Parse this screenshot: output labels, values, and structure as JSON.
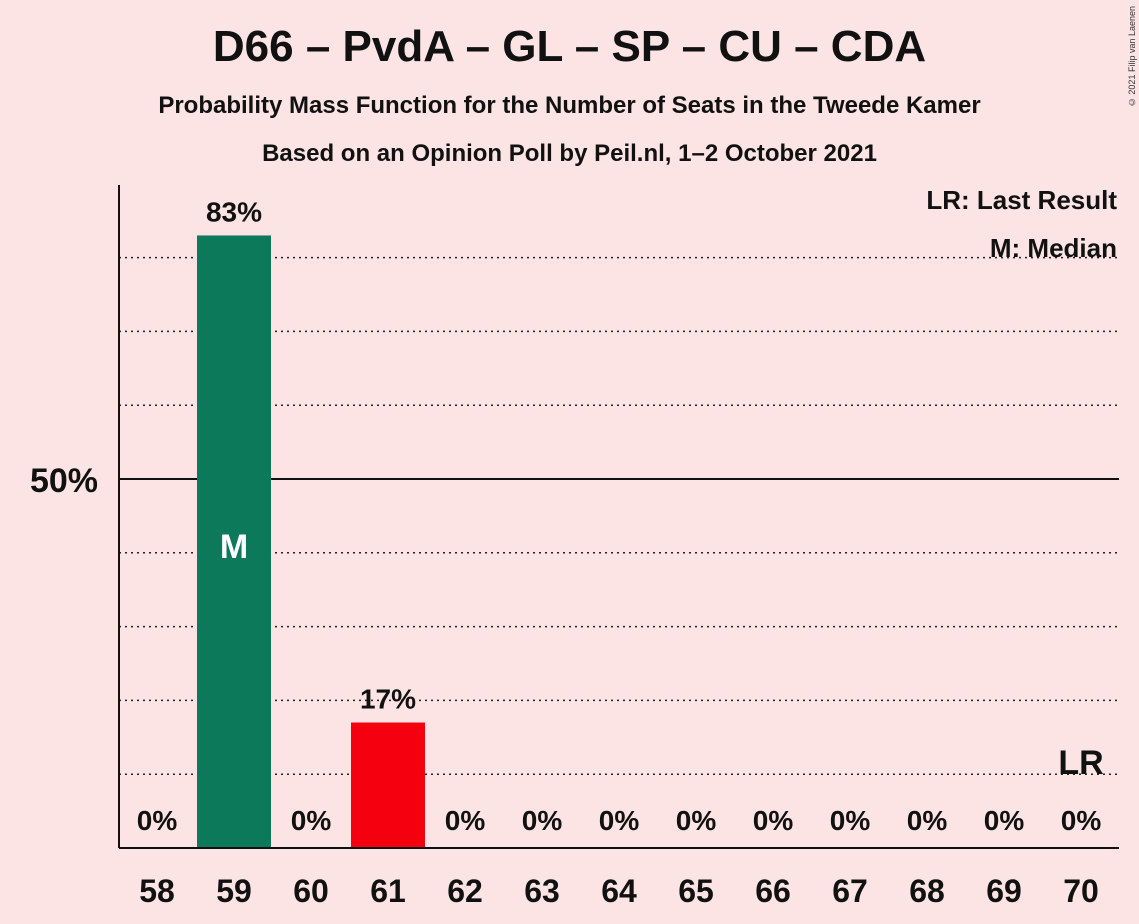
{
  "chart_data": {
    "type": "bar",
    "title": "D66 – PvdA – GL – SP – CU – CDA",
    "subtitle": "Probability Mass Function for the Number of Seats in the Tweede Kamer",
    "subtitle2": "Based on an Opinion Poll by Peil.nl, 1–2 October 2021",
    "categories": [
      "58",
      "59",
      "60",
      "61",
      "62",
      "63",
      "64",
      "65",
      "66",
      "67",
      "68",
      "69",
      "70"
    ],
    "values": [
      0,
      83,
      0,
      17,
      0,
      0,
      0,
      0,
      0,
      0,
      0,
      0,
      0
    ],
    "value_labels": [
      "0%",
      "83%",
      "0%",
      "17%",
      "0%",
      "0%",
      "0%",
      "0%",
      "0%",
      "0%",
      "0%",
      "0%",
      "0%"
    ],
    "bar_colors": [
      "#0c7a5a",
      "#0c7a5a",
      "#0c7a5a",
      "#f5000f",
      "#0c7a5a",
      "#0c7a5a",
      "#0c7a5a",
      "#0c7a5a",
      "#0c7a5a",
      "#0c7a5a",
      "#0c7a5a",
      "#0c7a5a",
      "#0c7a5a"
    ],
    "ylim": [
      0,
      90
    ],
    "ytick_label": "50%",
    "ytick_value": 50,
    "grid_values": [
      10,
      20,
      30,
      40,
      60,
      70,
      80
    ],
    "median_seat": "59",
    "median_marker": "M",
    "last_result_seat": "70",
    "last_result_marker": "LR",
    "legend": [
      "LR: Last Result",
      "M: Median"
    ],
    "legend_position": "top-right"
  },
  "copyright": "© 2021 Filip van Laenen"
}
